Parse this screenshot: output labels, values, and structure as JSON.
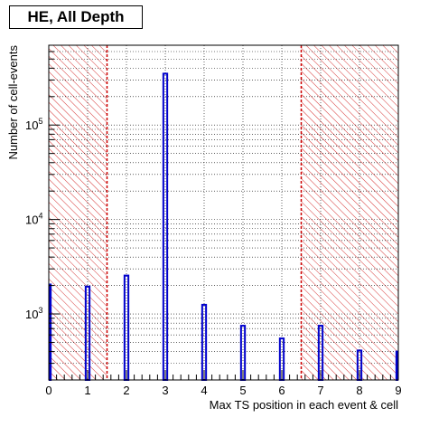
{
  "chart_data": {
    "type": "bar",
    "title": "HE, All Depth",
    "xlabel": "Max TS position in each event & cell",
    "ylabel": "Number of cell-events",
    "x_ticks": [
      "0",
      "1",
      "2",
      "3",
      "4",
      "5",
      "6",
      "7",
      "8",
      "9"
    ],
    "y_tick_labels": [
      {
        "base": "10",
        "exp": "3",
        "value": 1000
      },
      {
        "base": "10",
        "exp": "4",
        "value": 10000
      },
      {
        "base": "10",
        "exp": "5",
        "value": 100000
      }
    ],
    "xlim": [
      0,
      9
    ],
    "ylim": [
      200,
      700000
    ],
    "log_y": true,
    "grid": true,
    "bar_color": "#0000cc",
    "cut_line_color": "#cc0000",
    "excluded_region_color": "#cc0000",
    "cut_lines": [
      1.5,
      6.5
    ],
    "excluded_regions": [
      [
        0,
        1.5
      ],
      [
        6.5,
        9
      ]
    ],
    "categories": [
      0,
      1,
      2,
      3,
      4,
      5,
      6,
      7,
      8,
      9
    ],
    "values": [
      2050,
      1950,
      2550,
      350000,
      1250,
      750,
      550,
      750,
      410,
      400
    ]
  }
}
